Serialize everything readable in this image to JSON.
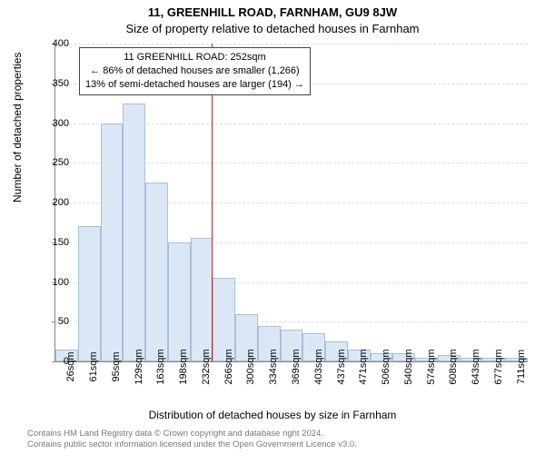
{
  "title_line1": "11, GREENHILL ROAD, FARNHAM, GU9 8JW",
  "title_line2": "Size of property relative to detached houses in Farnham",
  "y_label": "Number of detached properties",
  "x_label": "Distribution of detached houses by size in Farnham",
  "callout": {
    "line1": "11 GREENHILL ROAD: 252sqm",
    "line2": "← 86% of detached houses are smaller (1,266)",
    "line3": "13% of semi-detached houses are larger (194) →"
  },
  "chart": {
    "type": "histogram",
    "ylim": [
      0,
      400
    ],
    "ytick_step": 50,
    "bar_fill": "#dce7f5",
    "bar_stroke": "#a8bfdc",
    "background": "#ffffff",
    "grid_color": "#dddddd",
    "axis_color": "#888888",
    "marker_color": "#cc2222",
    "marker_value": 252,
    "x_tick_labels": [
      "26sqm",
      "61sqm",
      "95sqm",
      "129sqm",
      "163sqm",
      "198sqm",
      "232sqm",
      "266sqm",
      "300sqm",
      "334sqm",
      "369sqm",
      "403sqm",
      "437sqm",
      "471sqm",
      "506sqm",
      "540sqm",
      "574sqm",
      "608sqm",
      "643sqm",
      "677sqm",
      "711sqm"
    ],
    "values": [
      15,
      170,
      300,
      325,
      225,
      150,
      155,
      105,
      60,
      45,
      40,
      35,
      25,
      15,
      10,
      10,
      5,
      8,
      5,
      5,
      5
    ]
  },
  "footer": {
    "line1": "Contains HM Land Registry data © Crown copyright and database right 2024.",
    "line2": "Contains public sector information licensed under the Open Government Licence v3.0."
  },
  "style": {
    "title_fontsize": 13,
    "axis_label_fontsize": 12,
    "tick_fontsize": 11,
    "callout_fontsize": 11,
    "footer_fontsize": 9.5,
    "footer_color": "#777777"
  }
}
